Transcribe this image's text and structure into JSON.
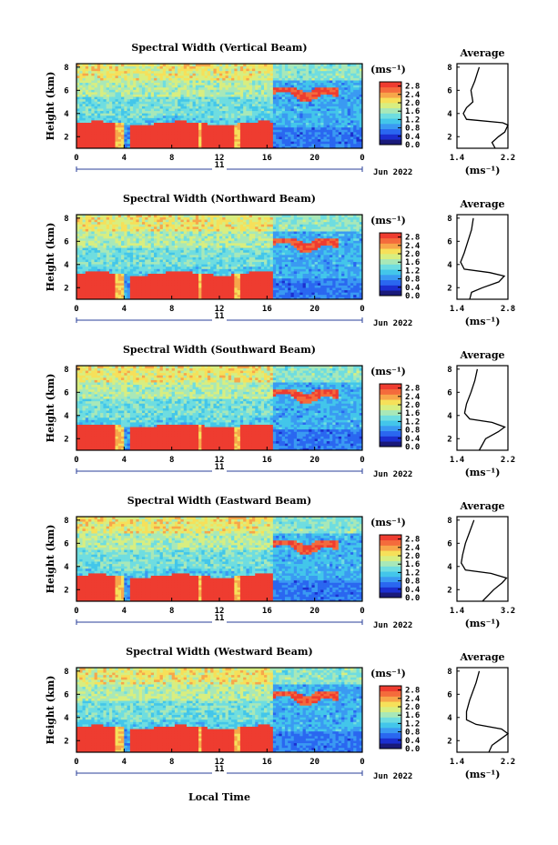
{
  "colors": {
    "scale": [
      "#1a1a7a",
      "#1c2fd0",
      "#2a67f0",
      "#3a9af2",
      "#43c6ea",
      "#6fdde0",
      "#a8e8b8",
      "#d8ee80",
      "#f6e05a",
      "#f7a64a",
      "#f46b3c",
      "#ee3c30"
    ]
  },
  "figure": {
    "xlabel": "Local Time",
    "date_label": "Jun 2022",
    "day_label": "11",
    "unit_label": "(ms⁻¹)",
    "avg_title": "Average",
    "avg_xlabel": "(ms⁻¹)",
    "height_label": "Height (km)"
  },
  "chart_data": [
    {
      "type": "heatmap",
      "title": "Spectral Width (Vertical Beam)",
      "xlabel": "",
      "ylabel": "Height (km)",
      "x_ticks": [
        "0",
        "4",
        "8",
        "12",
        "16",
        "20",
        "0"
      ],
      "y_ticks": [
        "2",
        "4",
        "6",
        "8"
      ],
      "xlim": [
        0,
        24
      ],
      "ylim": [
        1,
        8.3
      ],
      "colorbar": {
        "ticks": [
          "0.0",
          "0.4",
          "0.8",
          "1.2",
          "1.6",
          "2.0",
          "2.4",
          "2.8"
        ],
        "range": [
          0.0,
          3.0
        ]
      },
      "average": {
        "title": "Average",
        "xlim": [
          1.4,
          2.2
        ],
        "x_ticks": [
          "1.4",
          "2.2"
        ],
        "y_ticks": [
          "2",
          "4",
          "6",
          "8"
        ],
        "profile": [
          [
            2.0,
            1.0
          ],
          [
            1.95,
            1.5
          ],
          [
            2.05,
            2.0
          ],
          [
            2.15,
            2.4
          ],
          [
            2.2,
            3.0
          ],
          [
            2.12,
            3.2
          ],
          [
            1.55,
            3.5
          ],
          [
            1.5,
            4.0
          ],
          [
            1.55,
            4.5
          ],
          [
            1.65,
            5.0
          ],
          [
            1.62,
            6.0
          ],
          [
            1.68,
            6.8
          ],
          [
            1.72,
            7.5
          ],
          [
            1.75,
            8.0
          ]
        ]
      }
    },
    {
      "type": "heatmap",
      "title": "Spectral Width (Northward Beam)",
      "xlabel": "",
      "ylabel": "Height (km)",
      "x_ticks": [
        "0",
        "4",
        "8",
        "12",
        "16",
        "20",
        "0"
      ],
      "y_ticks": [
        "2",
        "4",
        "6",
        "8"
      ],
      "xlim": [
        0,
        24
      ],
      "ylim": [
        1,
        8.3
      ],
      "colorbar": {
        "ticks": [
          "0.0",
          "0.4",
          "0.8",
          "1.2",
          "1.6",
          "2.0",
          "2.4",
          "2.8"
        ],
        "range": [
          0.0,
          3.0
        ]
      },
      "average": {
        "title": "Average",
        "xlim": [
          1.4,
          2.8
        ],
        "x_ticks": [
          "1.4",
          "2.8"
        ],
        "y_ticks": [
          "2",
          "4",
          "6",
          "8"
        ],
        "profile": [
          [
            1.75,
            1.0
          ],
          [
            1.8,
            1.6
          ],
          [
            2.1,
            2.0
          ],
          [
            2.55,
            2.5
          ],
          [
            2.7,
            3.0
          ],
          [
            2.3,
            3.3
          ],
          [
            1.6,
            3.6
          ],
          [
            1.5,
            4.2
          ],
          [
            1.6,
            5.0
          ],
          [
            1.7,
            6.0
          ],
          [
            1.8,
            7.0
          ],
          [
            1.85,
            8.0
          ]
        ]
      }
    },
    {
      "type": "heatmap",
      "title": "Spectral Width (Southward Beam)",
      "xlabel": "",
      "ylabel": "Height (km)",
      "x_ticks": [
        "0",
        "4",
        "8",
        "12",
        "16",
        "20",
        "0"
      ],
      "y_ticks": [
        "2",
        "4",
        "6",
        "8"
      ],
      "xlim": [
        0,
        24
      ],
      "ylim": [
        1,
        8.3
      ],
      "colorbar": {
        "ticks": [
          "0.0",
          "0.4",
          "0.8",
          "1.2",
          "1.6",
          "2.0",
          "2.4",
          "2.8"
        ],
        "range": [
          0.0,
          3.0
        ]
      },
      "average": {
        "title": "Average",
        "xlim": [
          1.4,
          2.2
        ],
        "x_ticks": [
          "1.4",
          "2.2"
        ],
        "y_ticks": [
          "2",
          "4",
          "6",
          "8"
        ],
        "profile": [
          [
            1.75,
            1.0
          ],
          [
            1.85,
            2.0
          ],
          [
            2.05,
            2.6
          ],
          [
            2.15,
            3.0
          ],
          [
            1.95,
            3.4
          ],
          [
            1.6,
            3.7
          ],
          [
            1.52,
            4.2
          ],
          [
            1.55,
            5.0
          ],
          [
            1.62,
            6.0
          ],
          [
            1.68,
            7.0
          ],
          [
            1.72,
            8.0
          ]
        ]
      }
    },
    {
      "type": "heatmap",
      "title": "Spectral Width (Eastward Beam)",
      "xlabel": "",
      "ylabel": "Height (km)",
      "x_ticks": [
        "0",
        "4",
        "8",
        "12",
        "16",
        "20",
        "0"
      ],
      "y_ticks": [
        "2",
        "4",
        "6",
        "8"
      ],
      "xlim": [
        0,
        24
      ],
      "ylim": [
        1,
        8.3
      ],
      "colorbar": {
        "ticks": [
          "0.0",
          "0.4",
          "0.8",
          "1.2",
          "1.6",
          "2.0",
          "2.4",
          "2.8"
        ],
        "range": [
          0.0,
          3.0
        ]
      },
      "average": {
        "title": "Average",
        "xlim": [
          1.4,
          3.2
        ],
        "x_ticks": [
          "1.4",
          "3.2"
        ],
        "y_ticks": [
          "2",
          "4",
          "6",
          "8"
        ],
        "profile": [
          [
            2.3,
            1.0
          ],
          [
            2.7,
            2.0
          ],
          [
            3.0,
            2.6
          ],
          [
            3.15,
            3.0
          ],
          [
            2.6,
            3.4
          ],
          [
            1.7,
            3.7
          ],
          [
            1.55,
            4.3
          ],
          [
            1.6,
            5.0
          ],
          [
            1.7,
            6.0
          ],
          [
            1.85,
            7.0
          ],
          [
            2.0,
            8.0
          ]
        ]
      }
    },
    {
      "type": "heatmap",
      "title": "Spectral Width (Westward Beam)",
      "xlabel": "Local Time",
      "ylabel": "Height (km)",
      "x_ticks": [
        "0",
        "4",
        "8",
        "12",
        "16",
        "20",
        "0"
      ],
      "y_ticks": [
        "2",
        "4",
        "6",
        "8"
      ],
      "xlim": [
        0,
        24
      ],
      "ylim": [
        1,
        8.3
      ],
      "colorbar": {
        "ticks": [
          "0.0",
          "0.4",
          "0.8",
          "1.2",
          "1.6",
          "2.0",
          "2.4",
          "2.8"
        ],
        "range": [
          0.0,
          3.0
        ]
      },
      "average": {
        "title": "Average",
        "xlim": [
          1.4,
          2.2
        ],
        "x_ticks": [
          "1.4",
          "2.2"
        ],
        "y_ticks": [
          "2",
          "4",
          "6",
          "8"
        ],
        "profile": [
          [
            1.9,
            1.0
          ],
          [
            1.95,
            1.6
          ],
          [
            2.05,
            2.0
          ],
          [
            2.2,
            2.6
          ],
          [
            2.1,
            3.0
          ],
          [
            1.7,
            3.4
          ],
          [
            1.55,
            3.8
          ],
          [
            1.55,
            4.5
          ],
          [
            1.6,
            5.5
          ],
          [
            1.7,
            7.0
          ],
          [
            1.75,
            8.0
          ]
        ]
      }
    }
  ]
}
